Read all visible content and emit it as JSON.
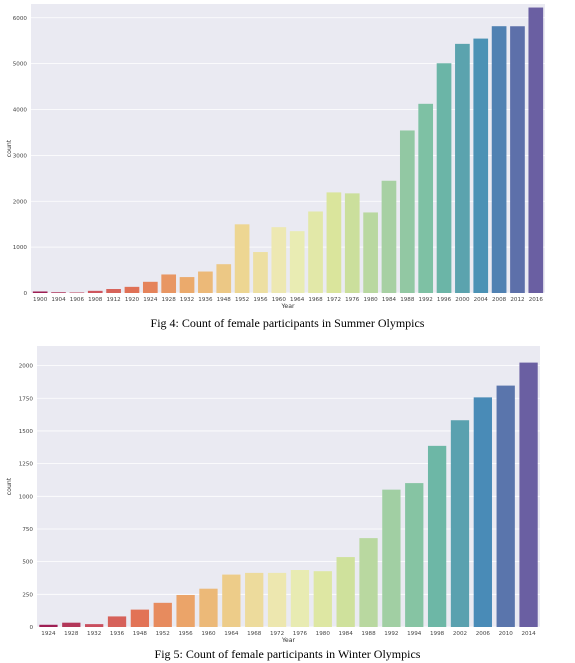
{
  "captions": {
    "fig4": "Fig 4: Count of female participants in Summer Olympics",
    "fig5": "Fig 5: Count of female participants in Winter Olympics"
  },
  "chart_data": [
    {
      "type": "bar",
      "title": "",
      "xlabel": "Year",
      "ylabel": "count",
      "ylim": [
        0,
        6300
      ],
      "yticks": [
        0,
        1000,
        2000,
        3000,
        4000,
        5000,
        6000
      ],
      "grid": true,
      "categories": [
        "1900",
        "1904",
        "1906",
        "1908",
        "1912",
        "1920",
        "1924",
        "1928",
        "1932",
        "1936",
        "1948",
        "1952",
        "1956",
        "1960",
        "1964",
        "1968",
        "1972",
        "1976",
        "1980",
        "1984",
        "1988",
        "1992",
        "1996",
        "2000",
        "2004",
        "2008",
        "2012",
        "2016"
      ],
      "values": [
        33,
        16,
        11,
        47,
        87,
        134,
        244,
        404,
        347,
        468,
        628,
        1497,
        893,
        1435,
        1348,
        1777,
        2193,
        2172,
        1756,
        2447,
        3543,
        4124,
        5008,
        5431,
        5546,
        5816,
        5815,
        6223
      ],
      "palette": "Spectral"
    },
    {
      "type": "bar",
      "title": "",
      "xlabel": "Year",
      "ylabel": "count",
      "ylim": [
        0,
        2150
      ],
      "yticks": [
        0,
        250,
        500,
        750,
        1000,
        1250,
        1500,
        1750,
        2000
      ],
      "grid": true,
      "categories": [
        "1924",
        "1928",
        "1932",
        "1936",
        "1948",
        "1952",
        "1956",
        "1960",
        "1964",
        "1968",
        "1972",
        "1976",
        "1980",
        "1984",
        "1988",
        "1992",
        "1994",
        "1998",
        "2002",
        "2006",
        "2010",
        "2014"
      ],
      "values": [
        17,
        33,
        22,
        81,
        133,
        185,
        245,
        293,
        401,
        414,
        414,
        436,
        427,
        535,
        680,
        1051,
        1101,
        1386,
        1582,
        1757,
        1847,
        2023
      ],
      "palette": "Spectral"
    }
  ]
}
